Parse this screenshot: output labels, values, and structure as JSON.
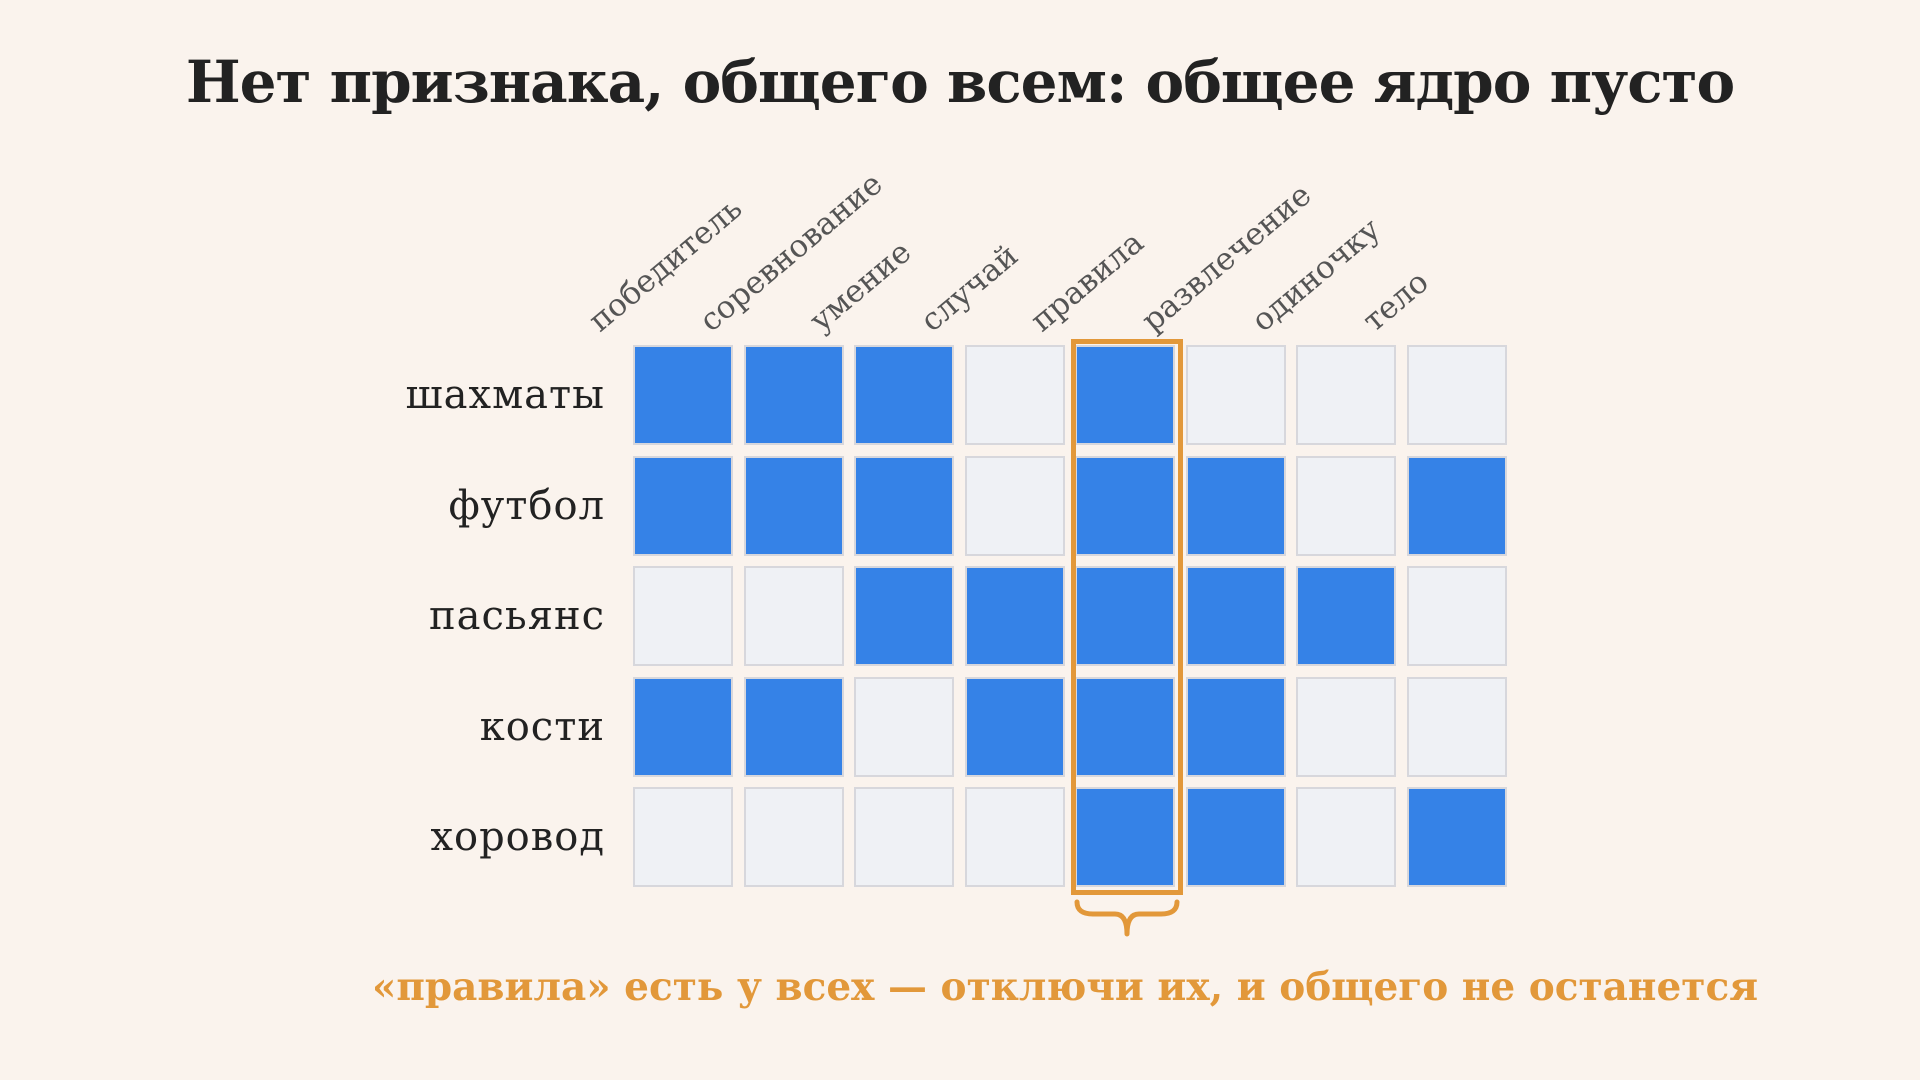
{
  "title": "Нет признака, общего всем: общее ядро пусто",
  "rows": [
    "шахматы",
    "футбол",
    "пасьянс",
    "кости",
    "хоровод"
  ],
  "cols": [
    "победитель",
    "соревнование",
    "умение",
    "случай",
    "правила",
    "развлечение",
    "одиночку",
    "тело"
  ],
  "matrix": [
    [
      1,
      1,
      1,
      0,
      1,
      0,
      0,
      0
    ],
    [
      1,
      1,
      1,
      0,
      1,
      1,
      0,
      1
    ],
    [
      0,
      0,
      1,
      1,
      1,
      1,
      1,
      0
    ],
    [
      1,
      1,
      0,
      1,
      1,
      1,
      0,
      0
    ],
    [
      0,
      0,
      0,
      0,
      1,
      1,
      0,
      1
    ]
  ],
  "highlight_col": "правила",
  "caption": "«правила» есть у всех — отключи их, и общего не останется",
  "colors": {
    "on": "#3582e7",
    "off": "#eff1f5",
    "accent": "#e2983a",
    "background": "#faf3ed"
  }
}
